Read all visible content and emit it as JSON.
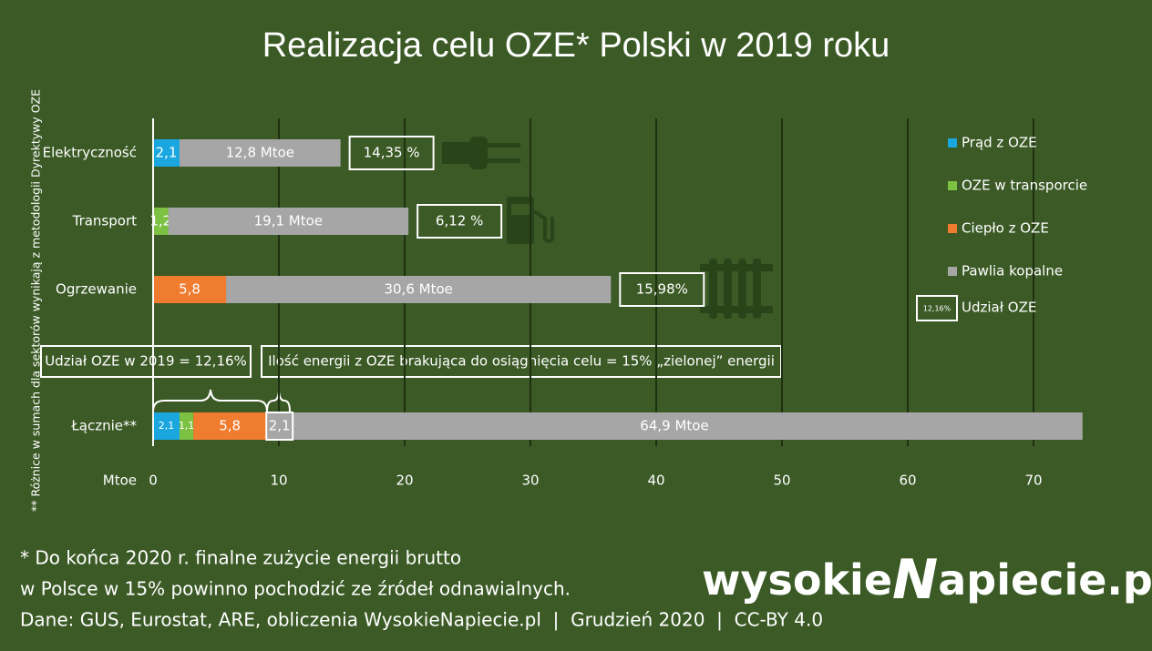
{
  "chart_data": {
    "type": "stacked-bar-horizontal",
    "title": "Realizacja celu OZE* Polski w 2019 roku",
    "categories": [
      "Elektryczność",
      "Transport",
      "Ogrzewanie",
      "Łącznie**"
    ],
    "series": [
      {
        "name": "Prąd z OZE",
        "color": "#1aa7e0",
        "values": [
          2.1,
          null,
          null,
          2.1
        ],
        "value_labels": [
          "2,1",
          null,
          null,
          "2,1"
        ]
      },
      {
        "name": "OZE w transporcie",
        "color": "#7dc143",
        "values": [
          null,
          1.2,
          null,
          1.1
        ],
        "value_labels": [
          null,
          "1,2",
          null,
          "1,1"
        ]
      },
      {
        "name": "Ciepło z OZE",
        "color": "#f07c30",
        "values": [
          null,
          null,
          5.8,
          5.8
        ],
        "value_labels": [
          null,
          null,
          "5,8",
          "5,8"
        ]
      },
      {
        "name": "Pawlia kopalne",
        "color": "#a6a6a6",
        "values": [
          12.8,
          19.1,
          30.6,
          64.9
        ],
        "value_labels": [
          "12,8 Mtoe",
          "19,1 Mtoe",
          "30,6 Mtoe",
          "64,9 Mtoe"
        ]
      }
    ],
    "shares": [
      "14,35 %",
      "6,12 %",
      "15,98%"
    ],
    "shortfall": {
      "value": 2.1,
      "label": "2,1"
    },
    "share_legend": {
      "sample": "12,16%",
      "name": "Udział OZE"
    },
    "annotations": [
      "Udział OZE w 2019 = 12,16%",
      "Ilość energii z OZE brakująca do osiągnięcia celu = 15% „zielonej” energii"
    ],
    "x_label": "Mtoe",
    "xlim": [
      0,
      75
    ],
    "xticks": [
      0,
      10,
      20,
      30,
      40,
      50,
      60,
      70
    ],
    "grid": true,
    "side_note": "** Różnice w sumach dla sektorów wynikają z metodologii Dyrektywy OZE"
  },
  "footer": {
    "notes": [
      "* Do końca 2020 r. finalne zużycie energii brutto",
      "w Polsce w 15% powinno pochodzić ze źródeł odnawialnych.",
      "Dane: GUS, Eurostat, ARE, obliczenia WysokieNapiecie.pl  |  Grudzień 2020  |  CC-BY 4.0"
    ],
    "logo": [
      "wysokie",
      "N",
      "apiecie.pl"
    ]
  }
}
